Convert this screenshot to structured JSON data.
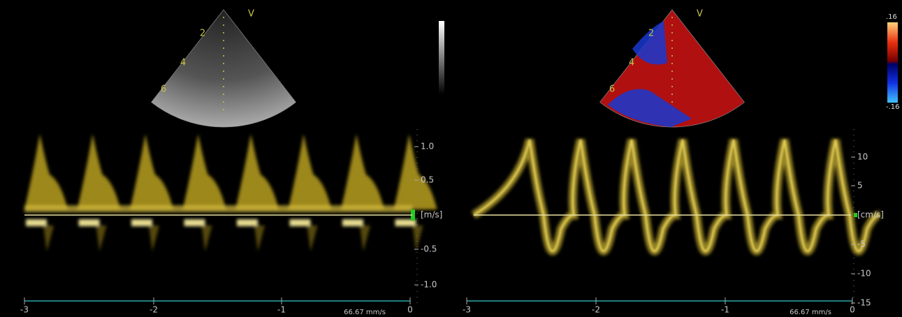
{
  "left_panel": {
    "depth_labels": [
      "2",
      "4",
      "6"
    ],
    "view_label": "V",
    "velocity_ticks": [
      "1.0",
      "0.5",
      "-0.5",
      "-1.0"
    ],
    "velocity_unit": "[m/s]",
    "time_ticks": [
      "-3",
      "-2",
      "-1",
      "0"
    ],
    "sweep_speed": "66.67 mm/s"
  },
  "right_panel": {
    "depth_labels": [
      "2",
      "4",
      "6"
    ],
    "view_label": "V",
    "color_scale": [
      ".16",
      "-.16"
    ],
    "velocity_ticks": [
      "10",
      "5",
      "-5",
      "-10",
      "-15"
    ],
    "velocity_unit": "[cm/s]",
    "time_ticks": [
      "-3",
      "-2",
      "-1",
      "0"
    ],
    "sweep_speed": "66.67 mm/s"
  }
}
